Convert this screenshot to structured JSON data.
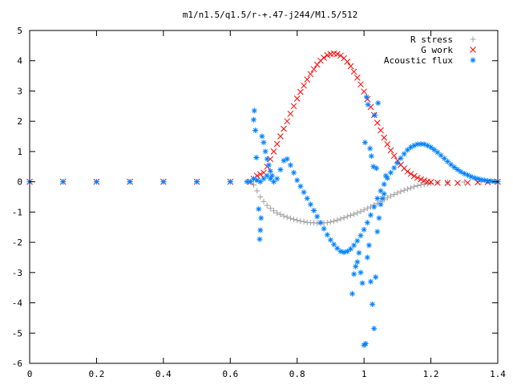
{
  "chart_data": {
    "type": "scatter",
    "title": "m1/n1.5/q1.5/r-+.47-j244/M1.5/512",
    "xlabel": "",
    "ylabel": "",
    "xlim": [
      0,
      1.4
    ],
    "ylim": [
      -6,
      5
    ],
    "x_ticks": [
      "0",
      "0.2",
      "0.4",
      "0.6",
      "0.8",
      "1",
      "1.2",
      "1.4"
    ],
    "y_ticks": [
      "5",
      "4",
      "3",
      "2",
      "1",
      "0",
      "-1",
      "-2",
      "-3",
      "-4",
      "-5",
      "-6"
    ],
    "grid": false,
    "legend_position": "top-right",
    "series": [
      {
        "name": "R stress",
        "color": "#a0a0a0",
        "marker": "plus",
        "points": [
          [
            0.0,
            0.0
          ],
          [
            0.1,
            0.0
          ],
          [
            0.2,
            0.0
          ],
          [
            0.3,
            0.0
          ],
          [
            0.4,
            0.0
          ],
          [
            0.5,
            0.0
          ],
          [
            0.6,
            0.0
          ],
          [
            0.66,
            0.0
          ],
          [
            0.67,
            -0.1
          ],
          [
            0.68,
            -0.3
          ],
          [
            0.69,
            -0.5
          ],
          [
            0.7,
            -0.65
          ],
          [
            0.71,
            -0.78
          ],
          [
            0.72,
            -0.88
          ],
          [
            0.73,
            -0.96
          ],
          [
            0.74,
            -1.03
          ],
          [
            0.75,
            -1.08
          ],
          [
            0.76,
            -1.13
          ],
          [
            0.77,
            -1.17
          ],
          [
            0.78,
            -1.21
          ],
          [
            0.79,
            -1.24
          ],
          [
            0.8,
            -1.27
          ],
          [
            0.81,
            -1.3
          ],
          [
            0.82,
            -1.32
          ],
          [
            0.83,
            -1.34
          ],
          [
            0.84,
            -1.35
          ],
          [
            0.85,
            -1.36
          ],
          [
            0.86,
            -1.37
          ],
          [
            0.87,
            -1.37
          ],
          [
            0.88,
            -1.36
          ],
          [
            0.89,
            -1.35
          ],
          [
            0.9,
            -1.33
          ],
          [
            0.91,
            -1.3
          ],
          [
            0.92,
            -1.27
          ],
          [
            0.93,
            -1.23
          ],
          [
            0.94,
            -1.19
          ],
          [
            0.95,
            -1.15
          ],
          [
            0.96,
            -1.11
          ],
          [
            0.97,
            -1.07
          ],
          [
            0.98,
            -1.03
          ],
          [
            0.99,
            -0.98
          ],
          [
            1.0,
            -0.93
          ],
          [
            1.01,
            -0.88
          ],
          [
            1.02,
            -0.83
          ],
          [
            1.03,
            -0.77
          ],
          [
            1.04,
            -0.71
          ],
          [
            1.05,
            -0.65
          ],
          [
            1.06,
            -0.59
          ],
          [
            1.07,
            -0.53
          ],
          [
            1.08,
            -0.47
          ],
          [
            1.09,
            -0.42
          ],
          [
            1.1,
            -0.37
          ],
          [
            1.11,
            -0.32
          ],
          [
            1.12,
            -0.28
          ],
          [
            1.13,
            -0.24
          ],
          [
            1.14,
            -0.2
          ],
          [
            1.15,
            -0.16
          ],
          [
            1.16,
            -0.13
          ],
          [
            1.17,
            -0.1
          ],
          [
            1.18,
            -0.08
          ],
          [
            1.19,
            -0.06
          ],
          [
            1.2,
            -0.05
          ],
          [
            1.22,
            -0.03
          ],
          [
            1.25,
            -0.02
          ],
          [
            1.3,
            -0.01
          ],
          [
            1.35,
            0.0
          ],
          [
            1.4,
            0.0
          ]
        ]
      },
      {
        "name": "G work",
        "color": "#ff0000",
        "marker": "cross",
        "points": [
          [
            0.0,
            0.0
          ],
          [
            0.1,
            0.0
          ],
          [
            0.2,
            0.0
          ],
          [
            0.3,
            0.0
          ],
          [
            0.4,
            0.0
          ],
          [
            0.5,
            0.0
          ],
          [
            0.6,
            0.0
          ],
          [
            0.66,
            0.0
          ],
          [
            0.67,
            0.1
          ],
          [
            0.68,
            0.2
          ],
          [
            0.69,
            0.25
          ],
          [
            0.7,
            0.3
          ],
          [
            0.71,
            0.5
          ],
          [
            0.72,
            0.75
          ],
          [
            0.73,
            1.0
          ],
          [
            0.74,
            1.25
          ],
          [
            0.75,
            1.5
          ],
          [
            0.76,
            1.75
          ],
          [
            0.77,
            2.0
          ],
          [
            0.78,
            2.25
          ],
          [
            0.79,
            2.5
          ],
          [
            0.8,
            2.75
          ],
          [
            0.81,
            2.97
          ],
          [
            0.82,
            3.18
          ],
          [
            0.83,
            3.38
          ],
          [
            0.84,
            3.56
          ],
          [
            0.85,
            3.72
          ],
          [
            0.86,
            3.87
          ],
          [
            0.87,
            4.0
          ],
          [
            0.88,
            4.1
          ],
          [
            0.89,
            4.18
          ],
          [
            0.9,
            4.22
          ],
          [
            0.91,
            4.24
          ],
          [
            0.92,
            4.22
          ],
          [
            0.93,
            4.17
          ],
          [
            0.94,
            4.08
          ],
          [
            0.95,
            3.97
          ],
          [
            0.96,
            3.82
          ],
          [
            0.97,
            3.64
          ],
          [
            0.98,
            3.44
          ],
          [
            0.99,
            3.22
          ],
          [
            1.0,
            2.98
          ],
          [
            1.01,
            2.73
          ],
          [
            1.02,
            2.47
          ],
          [
            1.03,
            2.21
          ],
          [
            1.04,
            1.95
          ],
          [
            1.05,
            1.7
          ],
          [
            1.06,
            1.46
          ],
          [
            1.07,
            1.24
          ],
          [
            1.08,
            1.04
          ],
          [
            1.09,
            0.86
          ],
          [
            1.1,
            0.7
          ],
          [
            1.11,
            0.56
          ],
          [
            1.12,
            0.44
          ],
          [
            1.13,
            0.34
          ],
          [
            1.14,
            0.26
          ],
          [
            1.15,
            0.19
          ],
          [
            1.16,
            0.13
          ],
          [
            1.17,
            0.08
          ],
          [
            1.18,
            0.04
          ],
          [
            1.19,
            0.01
          ],
          [
            1.2,
            -0.01
          ],
          [
            1.22,
            -0.03
          ],
          [
            1.25,
            -0.04
          ],
          [
            1.28,
            -0.04
          ],
          [
            1.31,
            -0.03
          ],
          [
            1.34,
            -0.02
          ],
          [
            1.37,
            -0.01
          ],
          [
            1.4,
            0.0
          ]
        ]
      },
      {
        "name": "Acoustic flux",
        "color": "#0080ff",
        "marker": "star",
        "points": [
          [
            0.0,
            0.0
          ],
          [
            0.1,
            0.0
          ],
          [
            0.2,
            0.0
          ],
          [
            0.3,
            0.0
          ],
          [
            0.4,
            0.0
          ],
          [
            0.5,
            0.0
          ],
          [
            0.6,
            0.0
          ],
          [
            0.65,
            0.0
          ],
          [
            0.66,
            0.0
          ],
          [
            0.67,
            0.1
          ],
          [
            0.68,
            0.05
          ],
          [
            0.69,
            0.0
          ],
          [
            0.7,
            0.1
          ],
          [
            0.71,
            0.2
          ],
          [
            0.72,
            0.1
          ],
          [
            0.73,
            0.0
          ],
          [
            0.74,
            0.1
          ],
          [
            0.75,
            0.4
          ],
          [
            0.76,
            0.7
          ],
          [
            0.77,
            0.75
          ],
          [
            0.78,
            0.55
          ],
          [
            0.79,
            0.3
          ],
          [
            0.8,
            0.05
          ],
          [
            0.81,
            -0.15
          ],
          [
            0.82,
            -0.35
          ],
          [
            0.83,
            -0.55
          ],
          [
            0.84,
            -0.75
          ],
          [
            0.85,
            -0.95
          ],
          [
            0.86,
            -1.15
          ],
          [
            0.87,
            -1.35
          ],
          [
            0.88,
            -1.55
          ],
          [
            0.89,
            -1.75
          ],
          [
            0.9,
            -1.92
          ],
          [
            0.91,
            -2.07
          ],
          [
            0.92,
            -2.2
          ],
          [
            0.93,
            -2.3
          ],
          [
            0.94,
            -2.33
          ],
          [
            0.95,
            -2.3
          ],
          [
            0.96,
            -2.22
          ],
          [
            0.97,
            -2.1
          ],
          [
            0.98,
            -1.95
          ],
          [
            0.99,
            -1.78
          ],
          [
            1.0,
            -1.58
          ],
          [
            1.01,
            -1.35
          ],
          [
            1.02,
            -1.1
          ],
          [
            1.03,
            -0.83
          ],
          [
            1.04,
            -0.55
          ],
          [
            1.05,
            -0.3
          ],
          [
            1.06,
            -0.08
          ],
          [
            1.07,
            0.12
          ],
          [
            1.08,
            0.3
          ],
          [
            1.09,
            0.46
          ],
          [
            1.1,
            0.62
          ],
          [
            1.11,
            0.78
          ],
          [
            1.12,
            0.92
          ],
          [
            1.13,
            1.05
          ],
          [
            1.14,
            1.14
          ],
          [
            1.15,
            1.2
          ],
          [
            1.16,
            1.24
          ],
          [
            1.17,
            1.25
          ],
          [
            1.18,
            1.24
          ],
          [
            1.19,
            1.2
          ],
          [
            1.2,
            1.14
          ],
          [
            1.21,
            1.06
          ],
          [
            1.22,
            0.97
          ],
          [
            1.23,
            0.87
          ],
          [
            1.24,
            0.77
          ],
          [
            1.25,
            0.67
          ],
          [
            1.26,
            0.57
          ],
          [
            1.27,
            0.48
          ],
          [
            1.28,
            0.4
          ],
          [
            1.29,
            0.33
          ],
          [
            1.3,
            0.27
          ],
          [
            1.31,
            0.22
          ],
          [
            1.32,
            0.17
          ],
          [
            1.33,
            0.13
          ],
          [
            1.34,
            0.1
          ],
          [
            1.35,
            0.07
          ],
          [
            1.36,
            0.05
          ],
          [
            1.37,
            0.03
          ],
          [
            1.38,
            0.02
          ],
          [
            1.39,
            0.01
          ],
          [
            1.4,
            0.0
          ],
          [
            0.67,
            2.05
          ],
          [
            0.672,
            2.35
          ],
          [
            0.675,
            1.7
          ],
          [
            0.678,
            0.8
          ],
          [
            0.685,
            -0.9
          ],
          [
            0.688,
            -1.9
          ],
          [
            0.69,
            -1.6
          ],
          [
            0.692,
            -1.2
          ],
          [
            0.695,
            1.5
          ],
          [
            0.7,
            1.3
          ],
          [
            0.705,
            1.0
          ],
          [
            0.71,
            0.75
          ],
          [
            0.715,
            0.55
          ],
          [
            0.72,
            0.35
          ],
          [
            0.725,
            0.2
          ],
          [
            0.965,
            -3.7
          ],
          [
            0.97,
            -3.05
          ],
          [
            0.975,
            -2.8
          ],
          [
            0.98,
            -2.65
          ],
          [
            0.985,
            -2.35
          ],
          [
            0.99,
            -3.0
          ],
          [
            0.995,
            -3.35
          ],
          [
            1.0,
            -5.4
          ],
          [
            1.005,
            -5.35
          ],
          [
            1.01,
            -2.5
          ],
          [
            1.015,
            -2.1
          ],
          [
            1.02,
            -3.3
          ],
          [
            1.025,
            -4.05
          ],
          [
            1.03,
            -4.85
          ],
          [
            1.035,
            -3.15
          ],
          [
            1.04,
            -1.65
          ],
          [
            1.045,
            -1.2
          ],
          [
            1.05,
            -0.75
          ],
          [
            1.055,
            -0.55
          ],
          [
            1.06,
            -0.4
          ],
          [
            1.065,
            0.2
          ],
          [
            1.003,
            1.3
          ],
          [
            1.008,
            2.8
          ],
          [
            1.012,
            2.55
          ],
          [
            1.018,
            1.1
          ],
          [
            1.022,
            0.85
          ],
          [
            1.028,
            0.5
          ],
          [
            1.032,
            2.2
          ],
          [
            1.037,
            0.45
          ],
          [
            1.042,
            2.6
          ]
        ]
      }
    ]
  }
}
